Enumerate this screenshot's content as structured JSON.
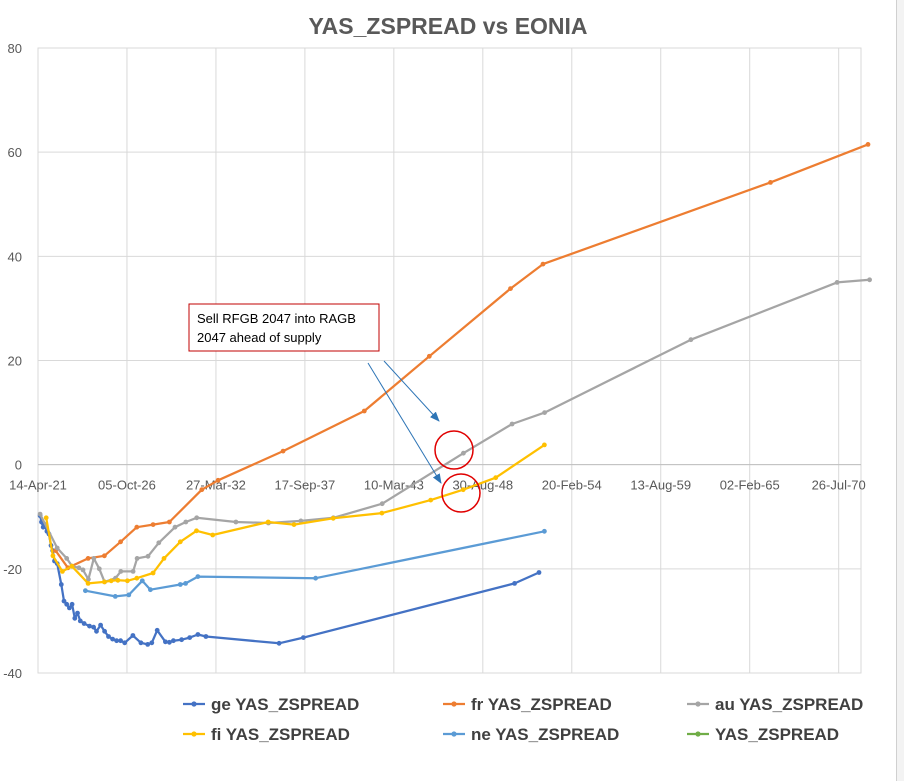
{
  "chart_data": {
    "type": "line",
    "title": "YAS_ZSPREAD vs EONIA",
    "xlabel": "",
    "ylabel": "",
    "ylim": [
      -40,
      80
    ],
    "yticks": [
      -40,
      -20,
      0,
      20,
      40,
      60,
      80
    ],
    "xlim": [
      "2021-04-14",
      "2071-12-10"
    ],
    "xticks": [
      "14-Apr-21",
      "05-Oct-26",
      "27-Mar-32",
      "17-Sep-37",
      "10-Mar-43",
      "30-Aug-48",
      "20-Feb-54",
      "13-Aug-59",
      "02-Feb-65",
      "26-Jul-70"
    ],
    "x_axis_crosses_y_at": 0,
    "grid": true,
    "legend_position": "bottom",
    "series": [
      {
        "name": "ge YAS_ZSPREAD",
        "color": "#4472C4",
        "x": [
          "2021-06-01",
          "2021-07-01",
          "2021-08-10",
          "2021-09-15",
          "2021-11-01",
          "2021-12-15",
          "2022-02-01",
          "2022-03-10",
          "2022-04-20",
          "2022-06-20",
          "2022-09-20",
          "2022-11-20",
          "2023-01-20",
          "2023-03-20",
          "2023-05-20",
          "2023-07-20",
          "2023-09-20",
          "2023-11-20",
          "2024-02-15",
          "2024-06-15",
          "2024-09-15",
          "2024-11-20",
          "2025-02-20",
          "2025-05-20",
          "2025-08-15",
          "2025-11-15",
          "2026-02-15",
          "2026-05-15",
          "2026-08-15",
          "2027-02-15",
          "2027-08-15",
          "2028-01-15",
          "2028-04-15",
          "2028-08-15",
          "2029-02-15",
          "2029-05-15",
          "2029-08-15",
          "2030-02-15",
          "2030-08-15",
          "2031-02-15",
          "2031-08-15",
          "2036-02-15",
          "2037-08-15",
          "2050-08-15",
          "2052-02-15"
        ],
        "values": [
          -9.8,
          -11,
          -12,
          -11.5,
          -12.8,
          -13.3,
          -15.5,
          -16.5,
          -18.5,
          -19,
          -23,
          -26.2,
          -26.8,
          -27.5,
          -26.8,
          -29.5,
          -28.5,
          -30,
          -30.5,
          -31,
          -31.2,
          -32,
          -30.8,
          -32,
          -33,
          -33.5,
          -33.8,
          -33.8,
          -34.2,
          -32.8,
          -34.2,
          -34.5,
          -34.2,
          -31.8,
          -34,
          -34.1,
          -33.8,
          -33.6,
          -33.2,
          -32.6,
          -33,
          -34.3,
          -33.2,
          -22.8,
          -20.7
        ]
      },
      {
        "name": "fr YAS_ZSPREAD",
        "color": "#ED7D31",
        "x": [
          "2022-05-15",
          "2023-02-15",
          "2024-05-15",
          "2025-05-15",
          "2026-05-15",
          "2027-05-15",
          "2028-05-15",
          "2029-05-15",
          "2031-05-15",
          "2032-05-15",
          "2036-05-15",
          "2041-05-15",
          "2045-05-15",
          "2050-05-15",
          "2052-05-15",
          "2066-05-15",
          "2072-05-15"
        ],
        "values": [
          -16.5,
          -19.8,
          -18,
          -17.5,
          -14.8,
          -12,
          -11.5,
          -11,
          -4.8,
          -3,
          2.6,
          10.3,
          20.8,
          33.8,
          38.5,
          54.2,
          61.5
        ]
      },
      {
        "name": "au YAS_ZSPREAD",
        "color": "#A5A5A5",
        "x": [
          "2021-06-01",
          "2022-06-20",
          "2023-01-20",
          "2023-05-20",
          "2023-10-20",
          "2024-01-20",
          "2024-05-20",
          "2024-09-20",
          "2025-01-20",
          "2025-05-20",
          "2026-01-20",
          "2026-05-20",
          "2027-02-20",
          "2027-05-20",
          "2028-01-20",
          "2028-09-20",
          "2029-09-20",
          "2030-05-20",
          "2031-01-20",
          "2033-06-20",
          "2035-06-20",
          "2037-06-20",
          "2039-06-20",
          "2042-06-20",
          "2047-06-20",
          "2050-06-20",
          "2052-06-20",
          "2061-06-20",
          "2070-06-20",
          "2072-06-20"
        ],
        "values": [
          -9.5,
          -16,
          -18,
          -19.5,
          -19.8,
          -20.2,
          -22,
          -18,
          -20,
          -22.5,
          -21.8,
          -20.5,
          -20.5,
          -18,
          -17.6,
          -15,
          -12,
          -11,
          -10.2,
          -11,
          -11.2,
          -10.8,
          -10.2,
          -7.5,
          2.2,
          7.8,
          10,
          24,
          35,
          35.5
        ]
      },
      {
        "name": "fi YAS_ZSPREAD",
        "color": "#FFC000",
        "x": [
          "2021-10-15",
          "2022-03-15",
          "2022-10-15",
          "2023-05-15",
          "2024-05-15",
          "2025-05-15",
          "2025-10-15",
          "2026-03-15",
          "2026-10-15",
          "2027-05-15",
          "2028-05-15",
          "2029-01-15",
          "2030-01-15",
          "2031-01-15",
          "2032-01-15",
          "2035-06-15",
          "2037-01-15",
          "2039-06-15",
          "2042-06-15",
          "2045-06-15",
          "2047-06-15",
          "2049-06-15",
          "2052-06-15"
        ],
        "values": [
          -10.2,
          -17.5,
          -20.5,
          -19.5,
          -22.8,
          -22.5,
          -22.3,
          -22.2,
          -22.3,
          -21.8,
          -20.8,
          -18,
          -14.8,
          -12.7,
          -13.5,
          -11,
          -11.5,
          -10.3,
          -9.3,
          -6.8,
          -4.8,
          -2.5,
          3.8
        ]
      },
      {
        "name": "ne YAS_ZSPREAD",
        "color": "#5B9BD5",
        "x": [
          "2024-03-15",
          "2026-01-15",
          "2026-11-15",
          "2027-09-15",
          "2028-03-15",
          "2030-01-15",
          "2030-05-15",
          "2031-02-15",
          "2038-05-15",
          "2052-06-15"
        ],
        "values": [
          -24.2,
          -25.3,
          -25,
          -22.3,
          -24,
          -23,
          -22.8,
          -21.5,
          -21.8,
          -12.8
        ]
      },
      {
        "name": "YAS_ZSPREAD",
        "color": "#70AD47",
        "x": [],
        "values": []
      }
    ],
    "annotations": [
      {
        "text_lines": [
          "Sell RFGB 2047 into RAGB",
          "2047 ahead of supply"
        ]
      }
    ]
  }
}
